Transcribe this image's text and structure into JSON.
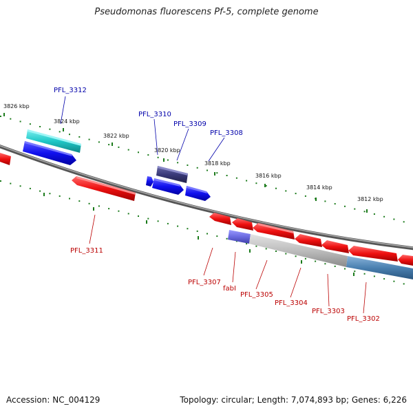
{
  "title": "Pseudomonas fluorescens Pf-5, complete genome",
  "footer": {
    "accession": "Accession: NC_004129",
    "summary": "Topology: circular; Length: 7,074,893 bp; Genes: 6,226"
  },
  "ticks": [
    {
      "label": "3826 kbp"
    },
    {
      "label": "3824 kbp"
    },
    {
      "label": "3822 kbp"
    },
    {
      "label": "3820 kbp"
    },
    {
      "label": "3818 kbp"
    },
    {
      "label": "3816 kbp"
    },
    {
      "label": "3814 kbp"
    },
    {
      "label": "3812 kbp"
    }
  ],
  "genes": {
    "top": [
      "PFL_3312",
      "PFL_3310",
      "PFL_3309",
      "PFL_3308"
    ],
    "bottom": [
      "PFL_3311",
      "PFL_3307",
      "fabI",
      "PFL_3305",
      "PFL_3304",
      "PFL_3303",
      "PFL_3302"
    ]
  },
  "colors": {
    "forward_gene": "#1010ee",
    "reverse_gene": "#ee1010",
    "top_label": "#0000aa",
    "bottom_label": "#bb0000",
    "tick": "#1a7a1a",
    "backbone": "#777777",
    "cyan_feature": "#20c8c8",
    "dark_feature": "#3a3a7a",
    "steel_feature": "#4a80b0",
    "gray_feature": "#b8b8b8"
  }
}
